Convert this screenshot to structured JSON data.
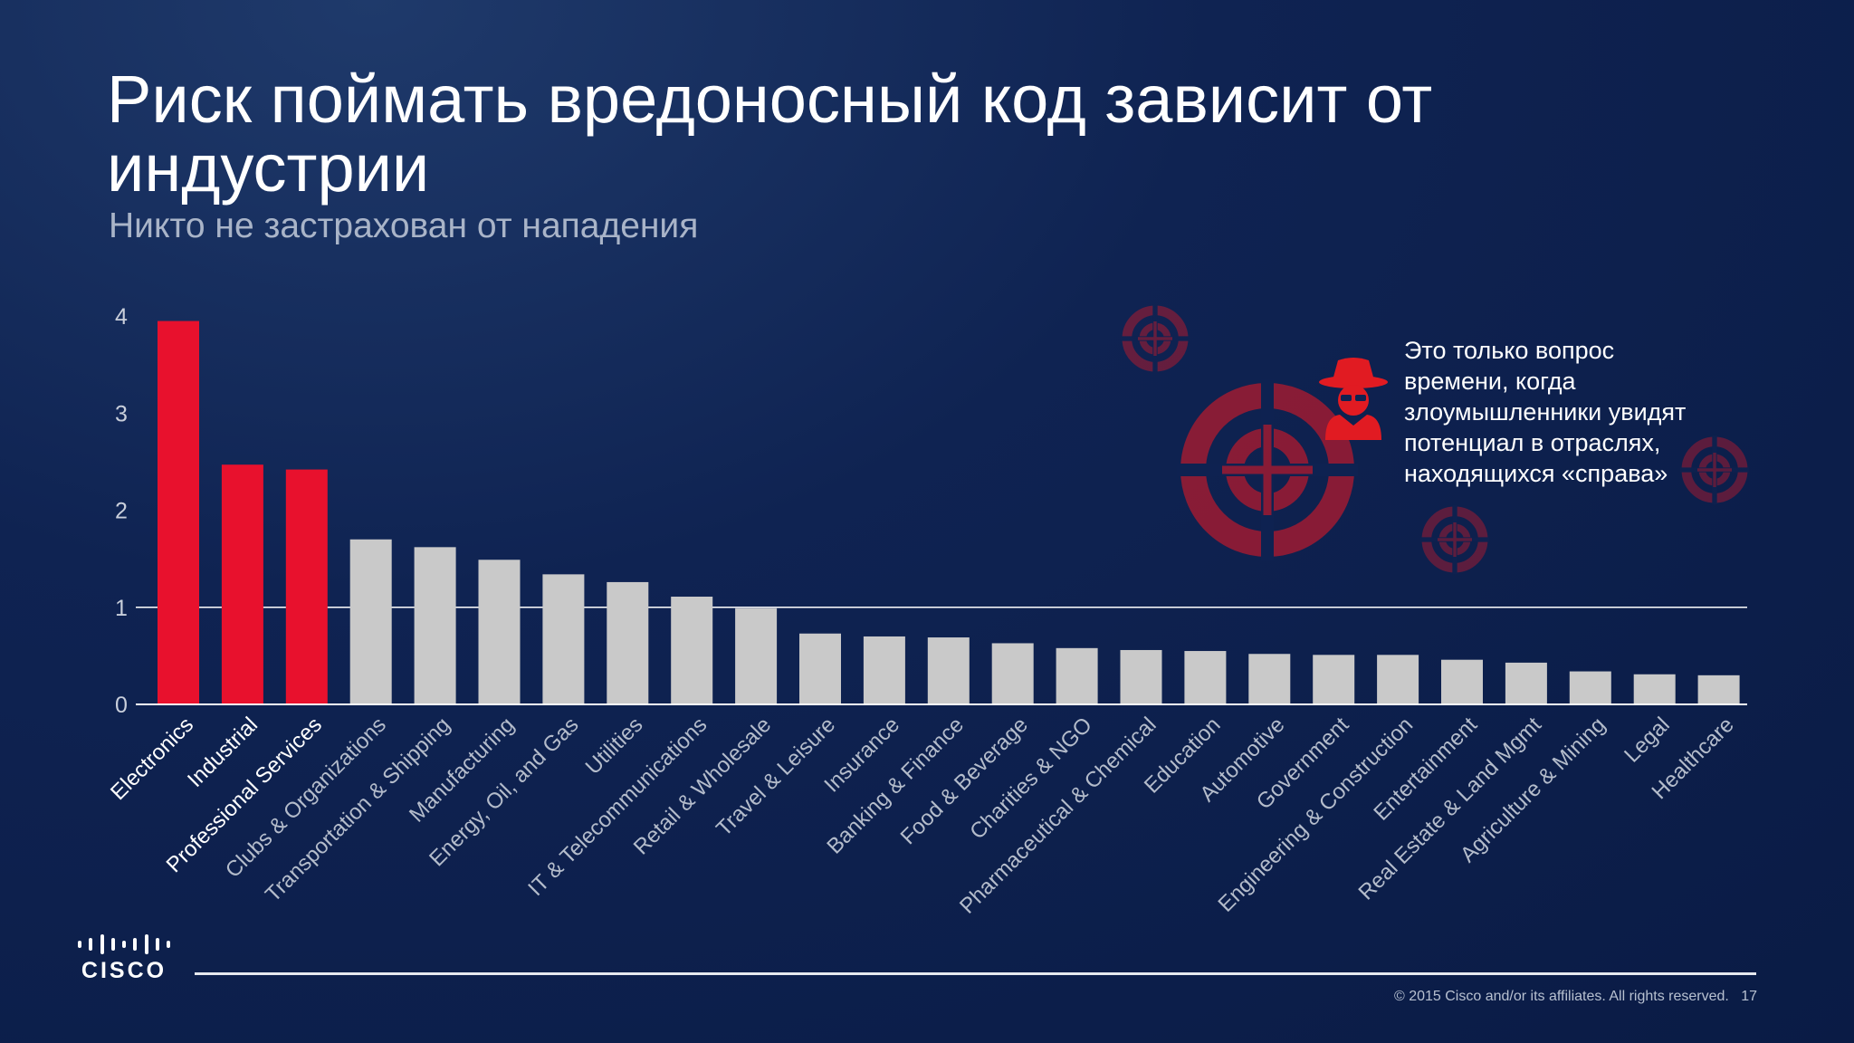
{
  "slide": {
    "title": "Риск поймать вредоносный код зависит от индустрии",
    "subtitle": "Никто не застрахован от нападения",
    "callout": "Это только вопрос времени, когда злоумышленники увидят потенциал в отраслях, находящихся «справа»",
    "logo_text": "CISCO",
    "copyright": "© 2015  Cisco and/or its affiliates. All rights reserved.",
    "page_number": "17"
  },
  "colors": {
    "highlight": "#e8112d",
    "normal": "#c9c9c9",
    "reference_line": "#ffffff",
    "target_icon": "#9e1b32",
    "hacker_icon": "#e11b22"
  },
  "icons": [
    "crosshair-target-icon",
    "hacker-spy-icon"
  ],
  "chart_data": {
    "type": "bar",
    "title": "",
    "xlabel": "",
    "ylabel": "",
    "ylim": [
      0,
      4
    ],
    "yticks": [
      0,
      1,
      2,
      3,
      4
    ],
    "reference_line": 1,
    "grid": false,
    "categories": [
      "Electronics",
      "Industrial",
      "Professional Services",
      "Clubs & Organizations",
      "Transportation & Shipping",
      "Manufacturing",
      "Energy, Oil, and Gas",
      "Utilities",
      "IT & Telecommunications",
      "Retail & Wholesale",
      "Travel & Leisure",
      "Insurance",
      "Banking & Finance",
      "Food & Beverage",
      "Charities & NGO",
      "Pharmaceutical & Chemical",
      "Education",
      "Automotive",
      "Government",
      "Engineering & Construction",
      "Entertainment",
      "Real Estate & Land Mgmt",
      "Agriculture & Mining",
      "Legal",
      "Healthcare"
    ],
    "values": [
      3.95,
      2.47,
      2.42,
      1.7,
      1.62,
      1.49,
      1.34,
      1.26,
      1.11,
      0.99,
      0.73,
      0.7,
      0.69,
      0.63,
      0.58,
      0.56,
      0.55,
      0.52,
      0.51,
      0.51,
      0.46,
      0.43,
      0.34,
      0.31,
      0.3
    ],
    "highlighted": [
      0,
      1,
      2
    ]
  }
}
